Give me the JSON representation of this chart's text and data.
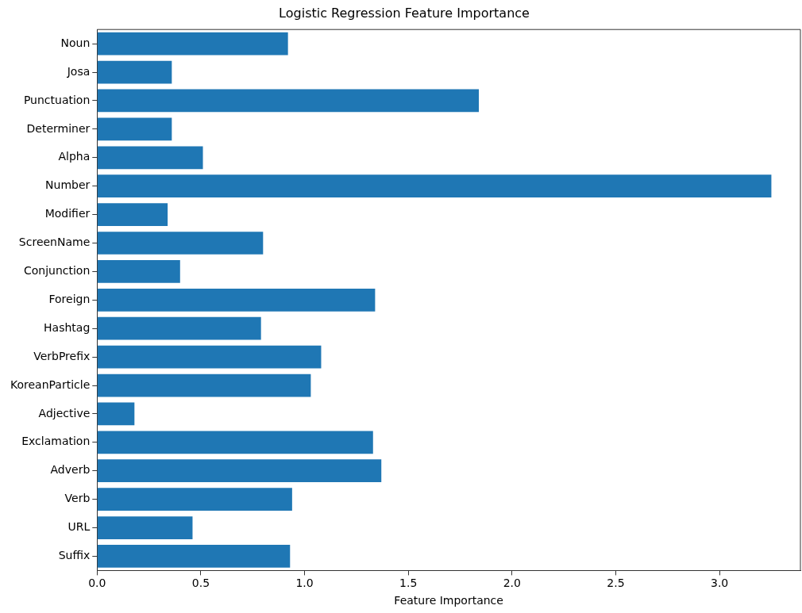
{
  "chart_data": {
    "type": "bar",
    "orientation": "horizontal",
    "title": "Logistic Regression Feature Importance",
    "xlabel": "Feature Importance",
    "categories": [
      "Noun",
      "Josa",
      "Punctuation",
      "Determiner",
      "Alpha",
      "Number",
      "Modifier",
      "ScreenName",
      "Conjunction",
      "Foreign",
      "Hashtag",
      "VerbPrefix",
      "KoreanParticle",
      "Adjective",
      "Exclamation",
      "Adverb",
      "Verb",
      "URL",
      "Suffix"
    ],
    "values": [
      0.92,
      0.36,
      1.84,
      0.36,
      0.51,
      3.25,
      0.34,
      0.8,
      0.4,
      1.34,
      0.79,
      1.08,
      1.03,
      0.18,
      1.33,
      1.37,
      0.94,
      0.46,
      0.93
    ],
    "color": "#1f77b4",
    "xlim": [
      0,
      3.39
    ],
    "xticks": [
      {
        "value": 0,
        "label": "0.0"
      },
      {
        "value": 0.5,
        "label": "0.5"
      },
      {
        "value": 1,
        "label": "1.0"
      },
      {
        "value": 1.5,
        "label": "1.5"
      },
      {
        "value": 2,
        "label": "2.0"
      },
      {
        "value": 2.5,
        "label": "2.5"
      },
      {
        "value": 3,
        "label": "3.0"
      }
    ],
    "grid": false,
    "legend": false
  }
}
